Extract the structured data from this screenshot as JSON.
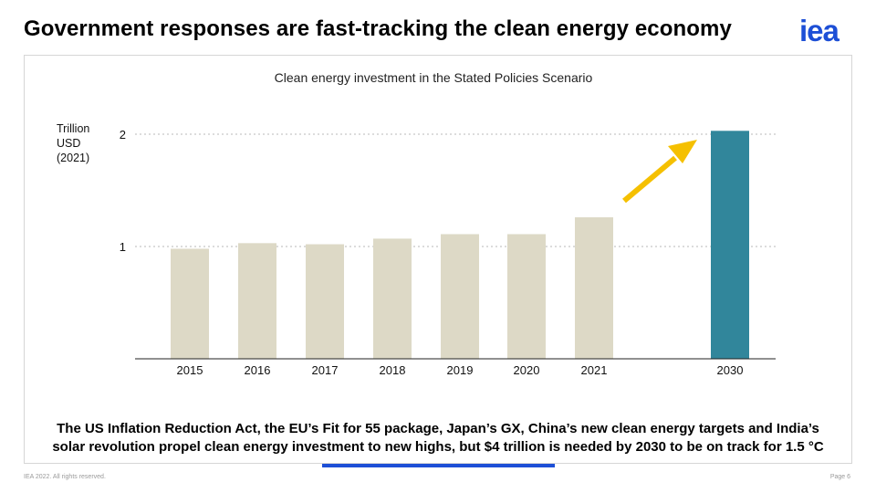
{
  "slide": {
    "title": "Government responses are fast-tracking the clean energy economy",
    "caption_line1": "The US Inflation Reduction Act, the EU’s Fit for 55 package, Japan’s GX, China’s new clean energy targets and India’s",
    "caption_line2": "solar revolution propel clean energy investment to new highs, but $4 trillion is needed by 2030 to be on track for 1.5 °C",
    "footer_left": "IEA 2022. All rights reserved.",
    "footer_right": "Page 6",
    "logo_text": "iea",
    "brand_color": "#1d4fd6"
  },
  "chart_data": {
    "type": "bar",
    "title": "Clean energy investment in the Stated Policies Scenario",
    "ylabel_lines": [
      "Trillion",
      "USD",
      "(2021)"
    ],
    "categories": [
      "2015",
      "2016",
      "2017",
      "2018",
      "2019",
      "2020",
      "2021",
      "2030"
    ],
    "values": [
      0.98,
      1.03,
      1.02,
      1.07,
      1.11,
      1.11,
      1.26,
      2.03
    ],
    "bar_colors": [
      "#ddd9c6",
      "#ddd9c6",
      "#ddd9c6",
      "#ddd9c6",
      "#ddd9c6",
      "#ddd9c6",
      "#ddd9c6",
      "#31869b"
    ],
    "yticks": [
      1,
      2
    ],
    "ylim": [
      0,
      2.2
    ],
    "grid": "dotted horizontal",
    "annotation": "arrow-up-right",
    "arrow_color": "#f5c000"
  }
}
